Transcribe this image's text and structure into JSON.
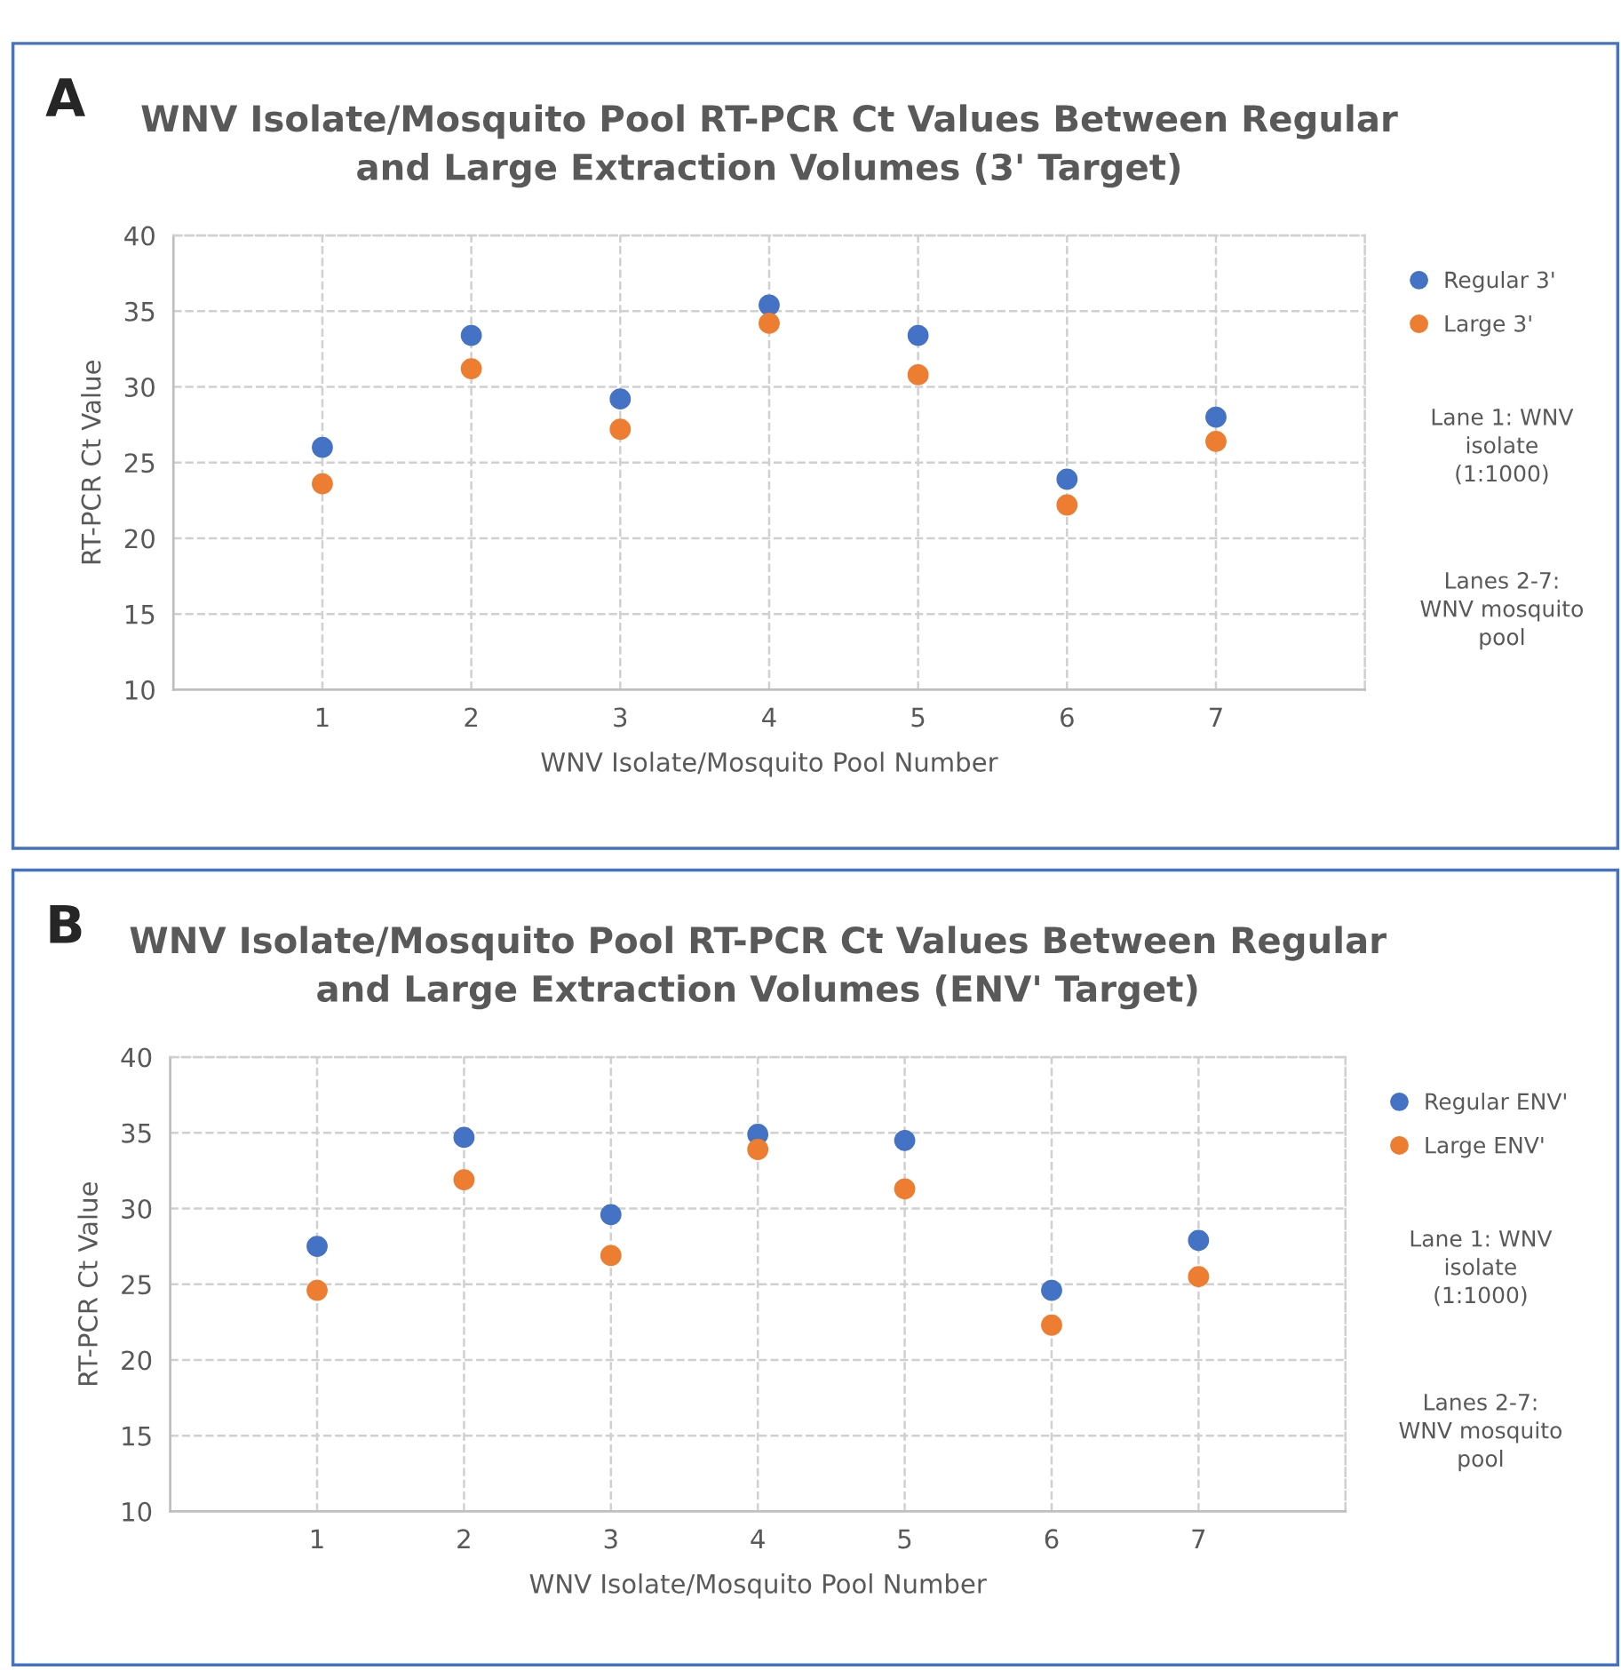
{
  "chart_data": [
    {
      "type": "scatter",
      "title": "WNV Isolate/Mosquito Pool RT-PCR Ct Values Between Regular\nand Large Extraction Volumes (3' Target)",
      "xlabel": "WNV Isolate/Mosquito Pool Number",
      "ylabel": "RT-PCR Ct Value",
      "x": [
        1,
        2,
        3,
        4,
        5,
        6,
        7
      ],
      "xlim": [
        0,
        8
      ],
      "xticks": [
        1,
        2,
        3,
        4,
        5,
        6,
        7
      ],
      "ylim": [
        10,
        40
      ],
      "yticks": [
        10,
        15,
        20,
        25,
        30,
        35,
        40
      ],
      "grid": true,
      "legend": "right",
      "marker": "circle",
      "series": [
        {
          "name": "Regular 3'",
          "color": "#4472c4",
          "values": [
            26.0,
            33.4,
            29.2,
            35.4,
            33.4,
            23.9,
            28.0
          ]
        },
        {
          "name": "Large 3'",
          "color": "#ed7d31",
          "values": [
            23.6,
            31.2,
            27.2,
            34.2,
            30.8,
            22.2,
            26.4
          ]
        }
      ],
      "annotations": [
        "A",
        "Lane 1: WNV\nisolate\n(1:1000)",
        "Lanes 2-7:\nWNV mosquito\npool"
      ]
    },
    {
      "type": "scatter",
      "title": "WNV Isolate/Mosquito Pool RT-PCR Ct Values Between Regular\nand Large Extraction Volumes (ENV' Target)",
      "xlabel": "WNV Isolate/Mosquito Pool Number",
      "ylabel": "RT-PCR Ct Value",
      "x": [
        1,
        2,
        3,
        4,
        5,
        6,
        7
      ],
      "xlim": [
        0,
        8
      ],
      "xticks": [
        1,
        2,
        3,
        4,
        5,
        6,
        7
      ],
      "ylim": [
        10,
        40
      ],
      "yticks": [
        10,
        15,
        20,
        25,
        30,
        35,
        40
      ],
      "grid": true,
      "legend": "right",
      "marker": "circle",
      "series": [
        {
          "name": "Regular ENV'",
          "color": "#4472c4",
          "values": [
            27.5,
            34.7,
            29.6,
            34.9,
            34.5,
            24.6,
            27.9
          ]
        },
        {
          "name": "Large ENV'",
          "color": "#ed7d31",
          "values": [
            24.6,
            31.9,
            26.9,
            33.9,
            31.3,
            22.3,
            25.5
          ]
        }
      ],
      "annotations": [
        "B",
        "Lane 1: WNV\nisolate\n(1:1000)",
        "Lanes 2-7:\nWNV mosquito\npool"
      ]
    }
  ]
}
